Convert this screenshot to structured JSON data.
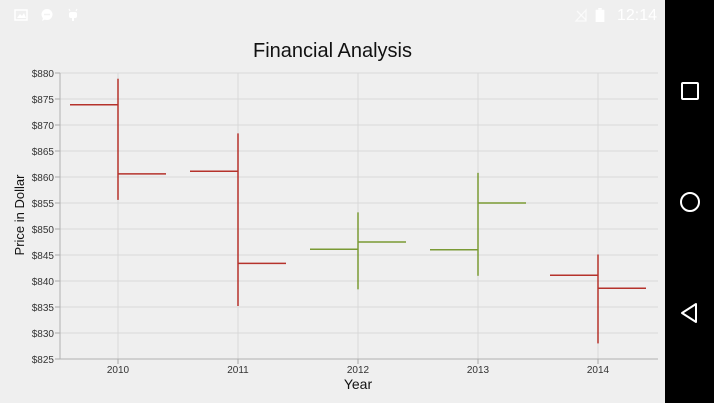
{
  "status_bar": {
    "time": "12:14",
    "left_icons": [
      "image-icon",
      "chat-bubble-icon",
      "android-debug-icon"
    ],
    "right_icons": [
      "signal-off-icon",
      "battery-icon"
    ]
  },
  "navigation_bar": {
    "buttons": [
      "recents-square",
      "home-circle",
      "back-triangle"
    ]
  },
  "colors": {
    "decrease": "#b5322b",
    "increase": "#7a9a34",
    "gridline": "#d8d8d8",
    "background": "#efefef"
  },
  "chart_data": {
    "type": "hilo-open-close",
    "title": "Financial Analysis",
    "xlabel": "Year",
    "ylabel": "Price in Dollar",
    "categories": [
      "2010",
      "2011",
      "2012",
      "2013",
      "2014"
    ],
    "ylim": [
      825,
      880
    ],
    "y_ticks": [
      "$825",
      "$830",
      "$835",
      "$840",
      "$845",
      "$850",
      "$855",
      "$860",
      "$865",
      "$870",
      "$875",
      "$880"
    ],
    "series": [
      {
        "points": [
          {
            "x": "2010",
            "open": 873.9,
            "high": 878.9,
            "low": 855.6,
            "close": 860.6
          },
          {
            "x": "2011",
            "open": 861.1,
            "high": 868.4,
            "low": 835.2,
            "close": 843.4
          },
          {
            "x": "2012",
            "open": 846.1,
            "high": 853.2,
            "low": 838.4,
            "close": 847.5
          },
          {
            "x": "2013",
            "open": 846.0,
            "high": 860.8,
            "low": 841.0,
            "close": 855.0
          },
          {
            "x": "2014",
            "open": 841.1,
            "high": 845.1,
            "low": 828.0,
            "close": 838.6
          }
        ]
      }
    ],
    "grid": true,
    "legend": "none"
  }
}
